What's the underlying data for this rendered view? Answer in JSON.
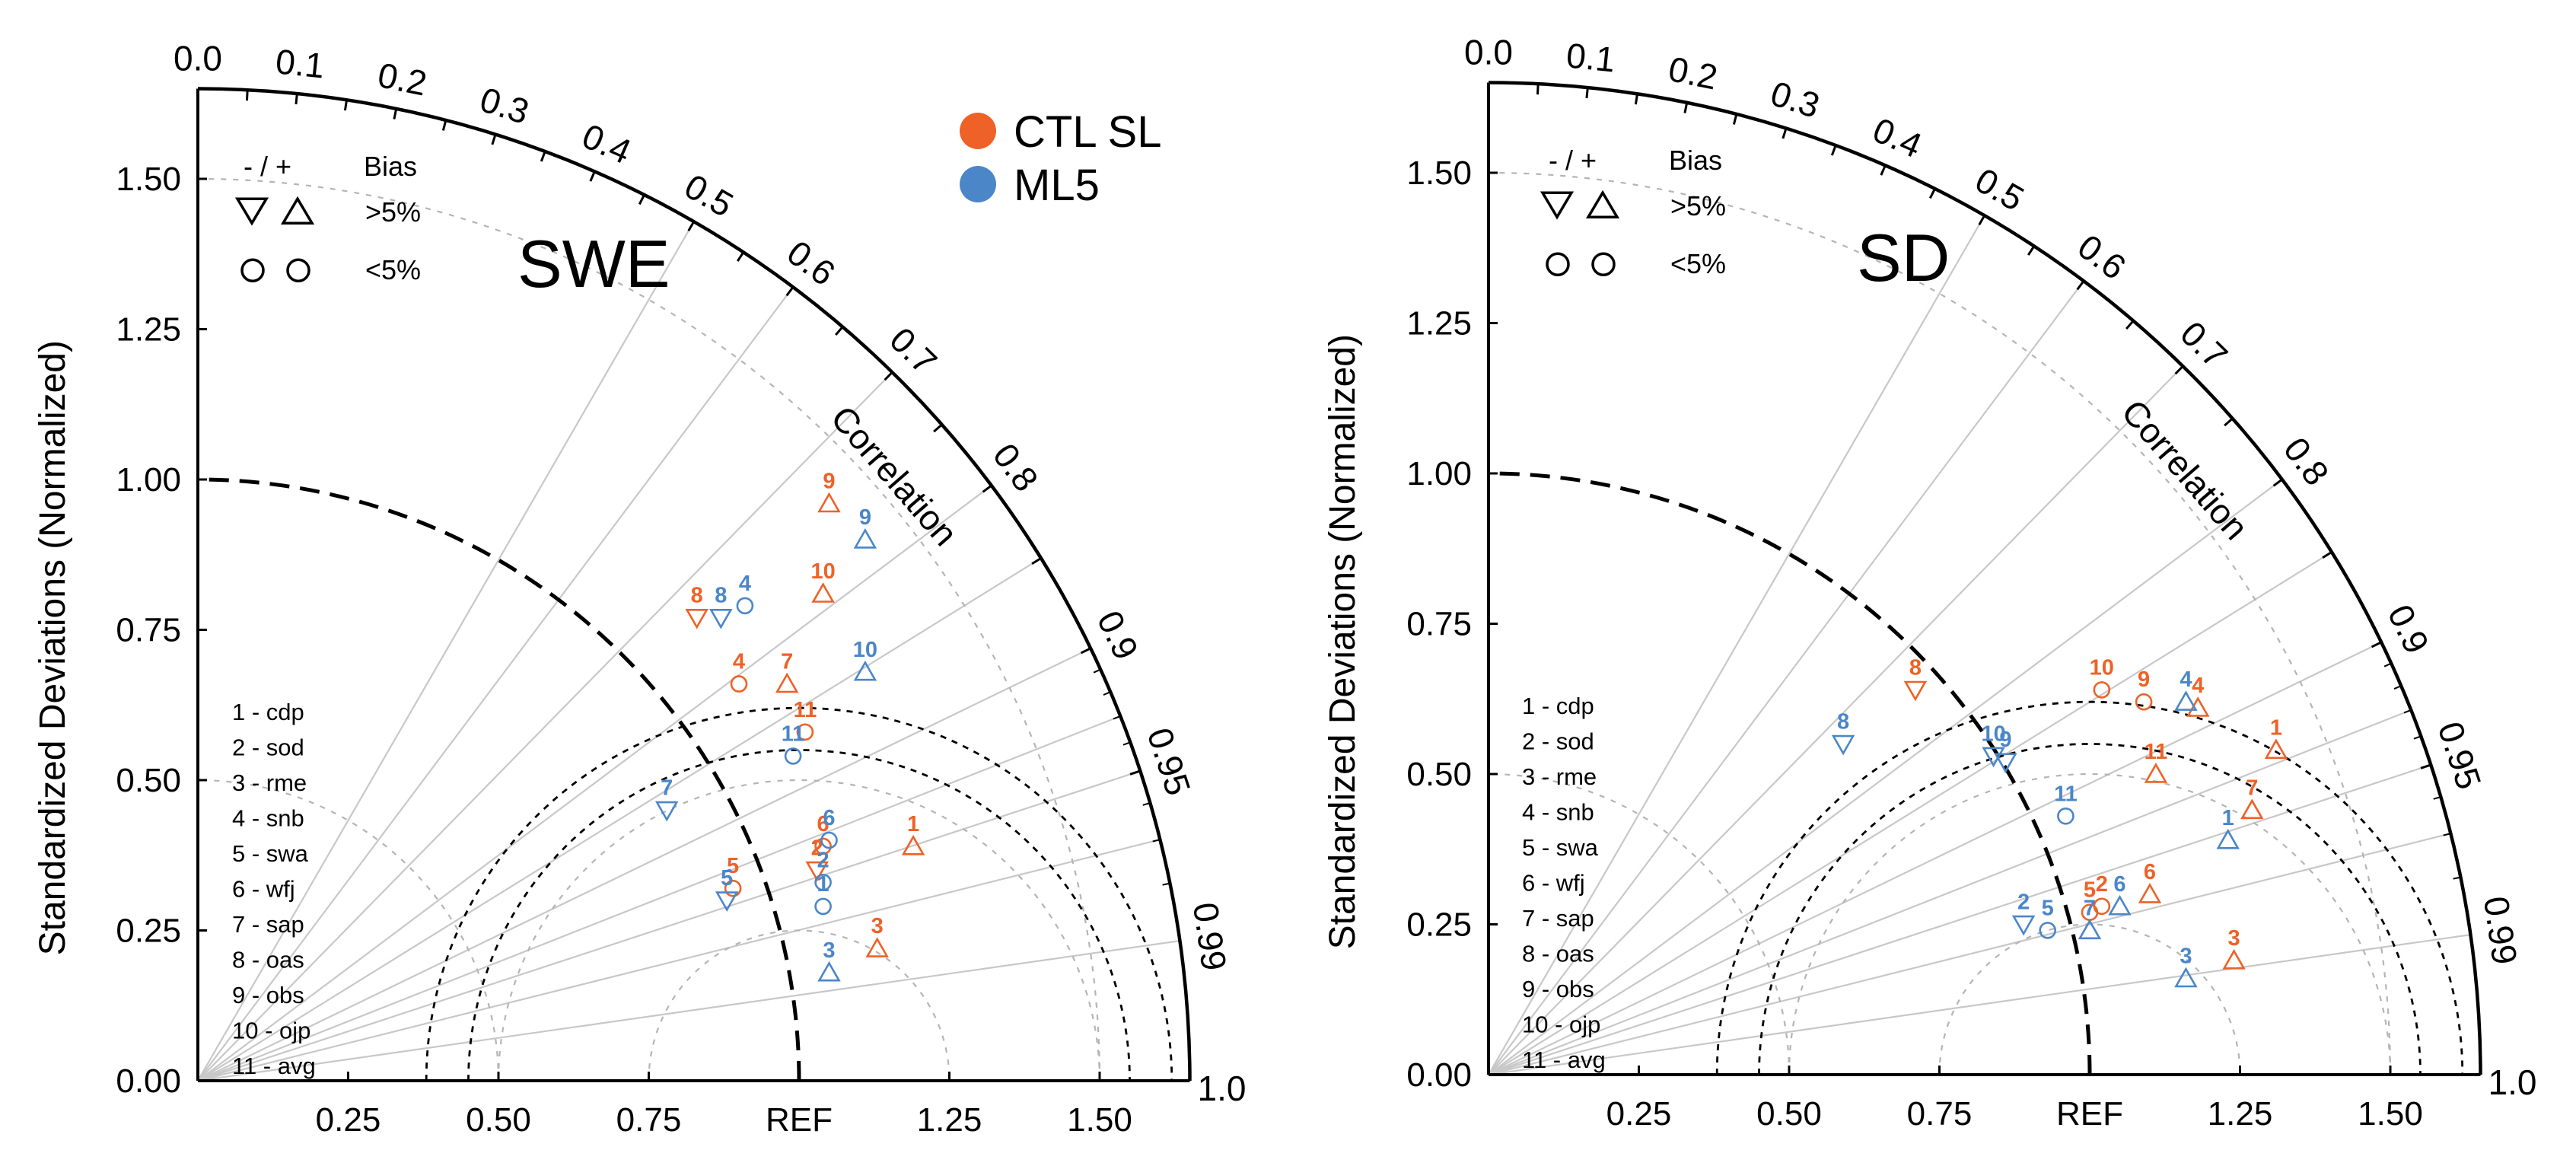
{
  "figure": {
    "legend": {
      "series": [
        {
          "name": "CTL SL",
          "color": "#ee6127"
        },
        {
          "name": "ML5",
          "color": "#4a86c8"
        }
      ],
      "bias_header_sign": "- / +",
      "bias_header_label": "Bias",
      "bias_gt": ">5%",
      "bias_lt": "<5%"
    },
    "stations": [
      "1 - cdp",
      "2 - sod",
      "3 - rme",
      "4 - snb",
      "5 - swa",
      "6 - wfj",
      "7 - sap",
      "8 - oas",
      "9 - obs",
      "10 - ojp",
      "11 - avg"
    ]
  },
  "chart_data": [
    {
      "type": "scatter",
      "subtype": "taylor_diagram",
      "title": "SWE",
      "ylabel": "Standardized Deviations (Normalized)",
      "xlabel": "",
      "arc_label": "Correlation",
      "ref_label": "REF",
      "std_range": [
        0,
        1.65
      ],
      "x_tick_labels": [
        "0.25",
        "0.50",
        "0.75",
        "REF",
        "1.25",
        "1.50"
      ],
      "x_tick_values": [
        0.25,
        0.5,
        0.75,
        1.0,
        1.25,
        1.5
      ],
      "y_tick_labels": [
        "0.00",
        "0.25",
        "0.50",
        "0.75",
        "1.00",
        "1.25",
        "1.50"
      ],
      "y_tick_values": [
        0,
        0.25,
        0.5,
        0.75,
        1.0,
        1.25,
        1.5
      ],
      "corr_outer_labels": [
        "0.0",
        "0.1",
        "0.2",
        "0.3",
        "0.4",
        "0.5",
        "0.6",
        "0.7",
        "0.8",
        "0.9",
        "0.95",
        "0.99",
        "1.0"
      ],
      "corr_outer_values": [
        0.0,
        0.1,
        0.2,
        0.3,
        0.4,
        0.5,
        0.6,
        0.7,
        0.8,
        0.9,
        0.95,
        0.99,
        1.0
      ],
      "series": [
        {
          "name": "CTL SL",
          "color": "#ee6127",
          "points": [
            {
              "label": "1",
              "x": 1.19,
              "y": 0.39,
              "marker": "up"
            },
            {
              "label": "2",
              "x": 1.03,
              "y": 0.35,
              "marker": "down"
            },
            {
              "label": "3",
              "x": 1.13,
              "y": 0.22,
              "marker": "up"
            },
            {
              "label": "4",
              "x": 0.9,
              "y": 0.66,
              "marker": "circle"
            },
            {
              "label": "5",
              "x": 0.89,
              "y": 0.32,
              "marker": "circle"
            },
            {
              "label": "6",
              "x": 1.04,
              "y": 0.39,
              "marker": "circle"
            },
            {
              "label": "7",
              "x": 0.98,
              "y": 0.66,
              "marker": "up"
            },
            {
              "label": "8",
              "x": 0.83,
              "y": 0.77,
              "marker": "down"
            },
            {
              "label": "9",
              "x": 1.05,
              "y": 0.96,
              "marker": "up"
            },
            {
              "label": "10",
              "x": 1.04,
              "y": 0.81,
              "marker": "up"
            },
            {
              "label": "11",
              "x": 1.01,
              "y": 0.58,
              "marker": "circle"
            }
          ]
        },
        {
          "name": "ML5",
          "color": "#4a86c8",
          "points": [
            {
              "label": "1",
              "x": 1.04,
              "y": 0.29,
              "marker": "circle"
            },
            {
              "label": "2",
              "x": 1.04,
              "y": 0.33,
              "marker": "circle"
            },
            {
              "label": "3",
              "x": 1.05,
              "y": 0.18,
              "marker": "up"
            },
            {
              "label": "4",
              "x": 0.91,
              "y": 0.79,
              "marker": "circle"
            },
            {
              "label": "5",
              "x": 0.88,
              "y": 0.3,
              "marker": "down"
            },
            {
              "label": "6",
              "x": 1.05,
              "y": 0.4,
              "marker": "circle"
            },
            {
              "label": "7",
              "x": 0.78,
              "y": 0.45,
              "marker": "down"
            },
            {
              "label": "8",
              "x": 0.87,
              "y": 0.77,
              "marker": "down"
            },
            {
              "label": "9",
              "x": 1.11,
              "y": 0.9,
              "marker": "up"
            },
            {
              "label": "10",
              "x": 1.11,
              "y": 0.68,
              "marker": "up"
            },
            {
              "label": "11",
              "x": 0.99,
              "y": 0.54,
              "marker": "circle"
            }
          ]
        }
      ]
    },
    {
      "type": "scatter",
      "subtype": "taylor_diagram",
      "title": "SD",
      "ylabel": "Standardized Deviations (Normalized)",
      "xlabel": "",
      "arc_label": "Correlation",
      "ref_label": "REF",
      "std_range": [
        0,
        1.65
      ],
      "x_tick_labels": [
        "0.25",
        "0.50",
        "0.75",
        "REF",
        "1.25",
        "1.50"
      ],
      "x_tick_values": [
        0.25,
        0.5,
        0.75,
        1.0,
        1.25,
        1.5
      ],
      "y_tick_labels": [
        "0.00",
        "0.25",
        "0.50",
        "0.75",
        "1.00",
        "1.25",
        "1.50"
      ],
      "y_tick_values": [
        0,
        0.25,
        0.5,
        0.75,
        1.0,
        1.25,
        1.5
      ],
      "corr_outer_labels": [
        "0.0",
        "0.1",
        "0.2",
        "0.3",
        "0.4",
        "0.5",
        "0.6",
        "0.7",
        "0.8",
        "0.9",
        "0.95",
        "0.99",
        "1.0"
      ],
      "corr_outer_values": [
        0.0,
        0.1,
        0.2,
        0.3,
        0.4,
        0.5,
        0.6,
        0.7,
        0.8,
        0.9,
        0.95,
        0.99,
        1.0
      ],
      "series": [
        {
          "name": "CTL SL",
          "color": "#ee6127",
          "points": [
            {
              "label": "1",
              "x": 1.31,
              "y": 0.54,
              "marker": "up"
            },
            {
              "label": "2",
              "x": 1.02,
              "y": 0.28,
              "marker": "circle"
            },
            {
              "label": "3",
              "x": 1.24,
              "y": 0.19,
              "marker": "up"
            },
            {
              "label": "4",
              "x": 1.18,
              "y": 0.61,
              "marker": "up"
            },
            {
              "label": "5",
              "x": 1.0,
              "y": 0.27,
              "marker": "circle"
            },
            {
              "label": "6",
              "x": 1.1,
              "y": 0.3,
              "marker": "up"
            },
            {
              "label": "7",
              "x": 1.27,
              "y": 0.44,
              "marker": "up"
            },
            {
              "label": "8",
              "x": 0.71,
              "y": 0.64,
              "marker": "down"
            },
            {
              "label": "9",
              "x": 1.09,
              "y": 0.62,
              "marker": "circle"
            },
            {
              "label": "10",
              "x": 1.02,
              "y": 0.64,
              "marker": "circle"
            },
            {
              "label": "11",
              "x": 1.11,
              "y": 0.5,
              "marker": "up"
            }
          ]
        },
        {
          "name": "ML5",
          "color": "#4a86c8",
          "points": [
            {
              "label": "1",
              "x": 1.23,
              "y": 0.39,
              "marker": "up"
            },
            {
              "label": "2",
              "x": 0.89,
              "y": 0.25,
              "marker": "down"
            },
            {
              "label": "3",
              "x": 1.16,
              "y": 0.16,
              "marker": "up"
            },
            {
              "label": "4",
              "x": 1.16,
              "y": 0.62,
              "marker": "up"
            },
            {
              "label": "5",
              "x": 0.93,
              "y": 0.24,
              "marker": "circle"
            },
            {
              "label": "6",
              "x": 1.05,
              "y": 0.28,
              "marker": "up"
            },
            {
              "label": "7",
              "x": 1.0,
              "y": 0.24,
              "marker": "up"
            },
            {
              "label": "8",
              "x": 0.59,
              "y": 0.55,
              "marker": "down"
            },
            {
              "label": "9",
              "x": 0.86,
              "y": 0.52,
              "marker": "down"
            },
            {
              "label": "10",
              "x": 0.84,
              "y": 0.53,
              "marker": "down"
            },
            {
              "label": "11",
              "x": 0.96,
              "y": 0.43,
              "marker": "circle"
            }
          ]
        }
      ]
    }
  ]
}
